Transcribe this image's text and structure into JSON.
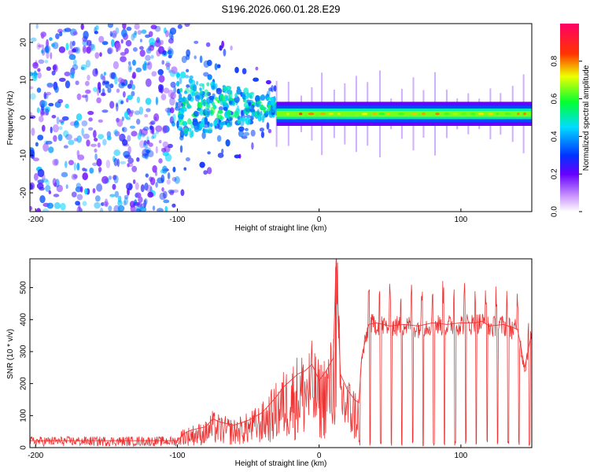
{
  "title": "S196.2026.060.01.28.E29",
  "colors": {
    "snr_line": "#ee3333",
    "axis": "#000000",
    "background": "#ffffff"
  },
  "chart_data": [
    {
      "type": "heatmap",
      "title": "S196.2026.060.01.28.E29",
      "xlabel": "Height of straight line (km)",
      "ylabel": "Frequency (Hz)",
      "xlim": [
        -204,
        150
      ],
      "ylim": [
        -25,
        25
      ],
      "xticks": [
        -200,
        -100,
        0,
        100
      ],
      "xtick_labels": [
        "-200",
        "-100",
        "0",
        "100"
      ],
      "yticks": [
        -20,
        -10,
        0,
        10,
        20
      ],
      "ytick_labels": [
        "-20",
        "-10",
        "0",
        "10",
        "20"
      ],
      "colorbar": {
        "label": "Normalized spectral amplitude",
        "range": [
          0,
          1
        ],
        "ticks": [
          0,
          0.2,
          0.4,
          0.6,
          0.8
        ],
        "tick_labels": [
          "0.0",
          "0.2",
          "0.4",
          "0.6",
          "0.8"
        ],
        "colormap": "rainbow (white-violet-blue-cyan-green-yellow-red-magenta)"
      },
      "description_regions": [
        {
          "x_range": [
            -204,
            -100
          ],
          "pattern": "diffuse noise across all frequencies",
          "amplitude": 0.15
        },
        {
          "x_range": [
            -100,
            -30
          ],
          "pattern": "scattered energy concentrated near 0 to 8 Hz",
          "amplitude": 0.3
        },
        {
          "x_range": [
            -30,
            150
          ],
          "pattern": "narrow band near 1 Hz",
          "amplitude": 0.85
        }
      ]
    },
    {
      "type": "line",
      "xlabel": "Height of straight line (km)",
      "ylabel": "SNR (10 * v/v)",
      "xlim": [
        -204,
        150
      ],
      "ylim": [
        0,
        590
      ],
      "xticks": [
        -200,
        -100,
        0,
        100
      ],
      "xtick_labels": [
        "-200",
        "-100",
        "0",
        "100"
      ],
      "yticks": [
        0,
        100,
        200,
        300,
        400,
        500
      ],
      "ytick_labels": [
        "0",
        "100",
        "200",
        "300",
        "400",
        "500"
      ],
      "series": [
        {
          "name": "SNR",
          "x": [
            -204,
            -180,
            -160,
            -140,
            -120,
            -100,
            -95,
            -90,
            -80,
            -75,
            -70,
            -60,
            -50,
            -40,
            -30,
            -25,
            -20,
            -15,
            -10,
            -5,
            0,
            5,
            10,
            12,
            15,
            20,
            25,
            28,
            30,
            35,
            40,
            45,
            50,
            60,
            70,
            80,
            90,
            100,
            110,
            115,
            120,
            130,
            140,
            145,
            150
          ],
          "y": [
            22,
            22,
            22,
            22,
            22,
            22,
            45,
            55,
            65,
            90,
            80,
            70,
            85,
            110,
            160,
            190,
            210,
            230,
            240,
            260,
            210,
            240,
            280,
            590,
            230,
            180,
            150,
            140,
            280,
            385,
            390,
            385,
            380,
            385,
            380,
            390,
            385,
            390,
            390,
            395,
            380,
            385,
            370,
            250,
            360
          ]
        }
      ],
      "line_color": "#ee3333"
    }
  ]
}
